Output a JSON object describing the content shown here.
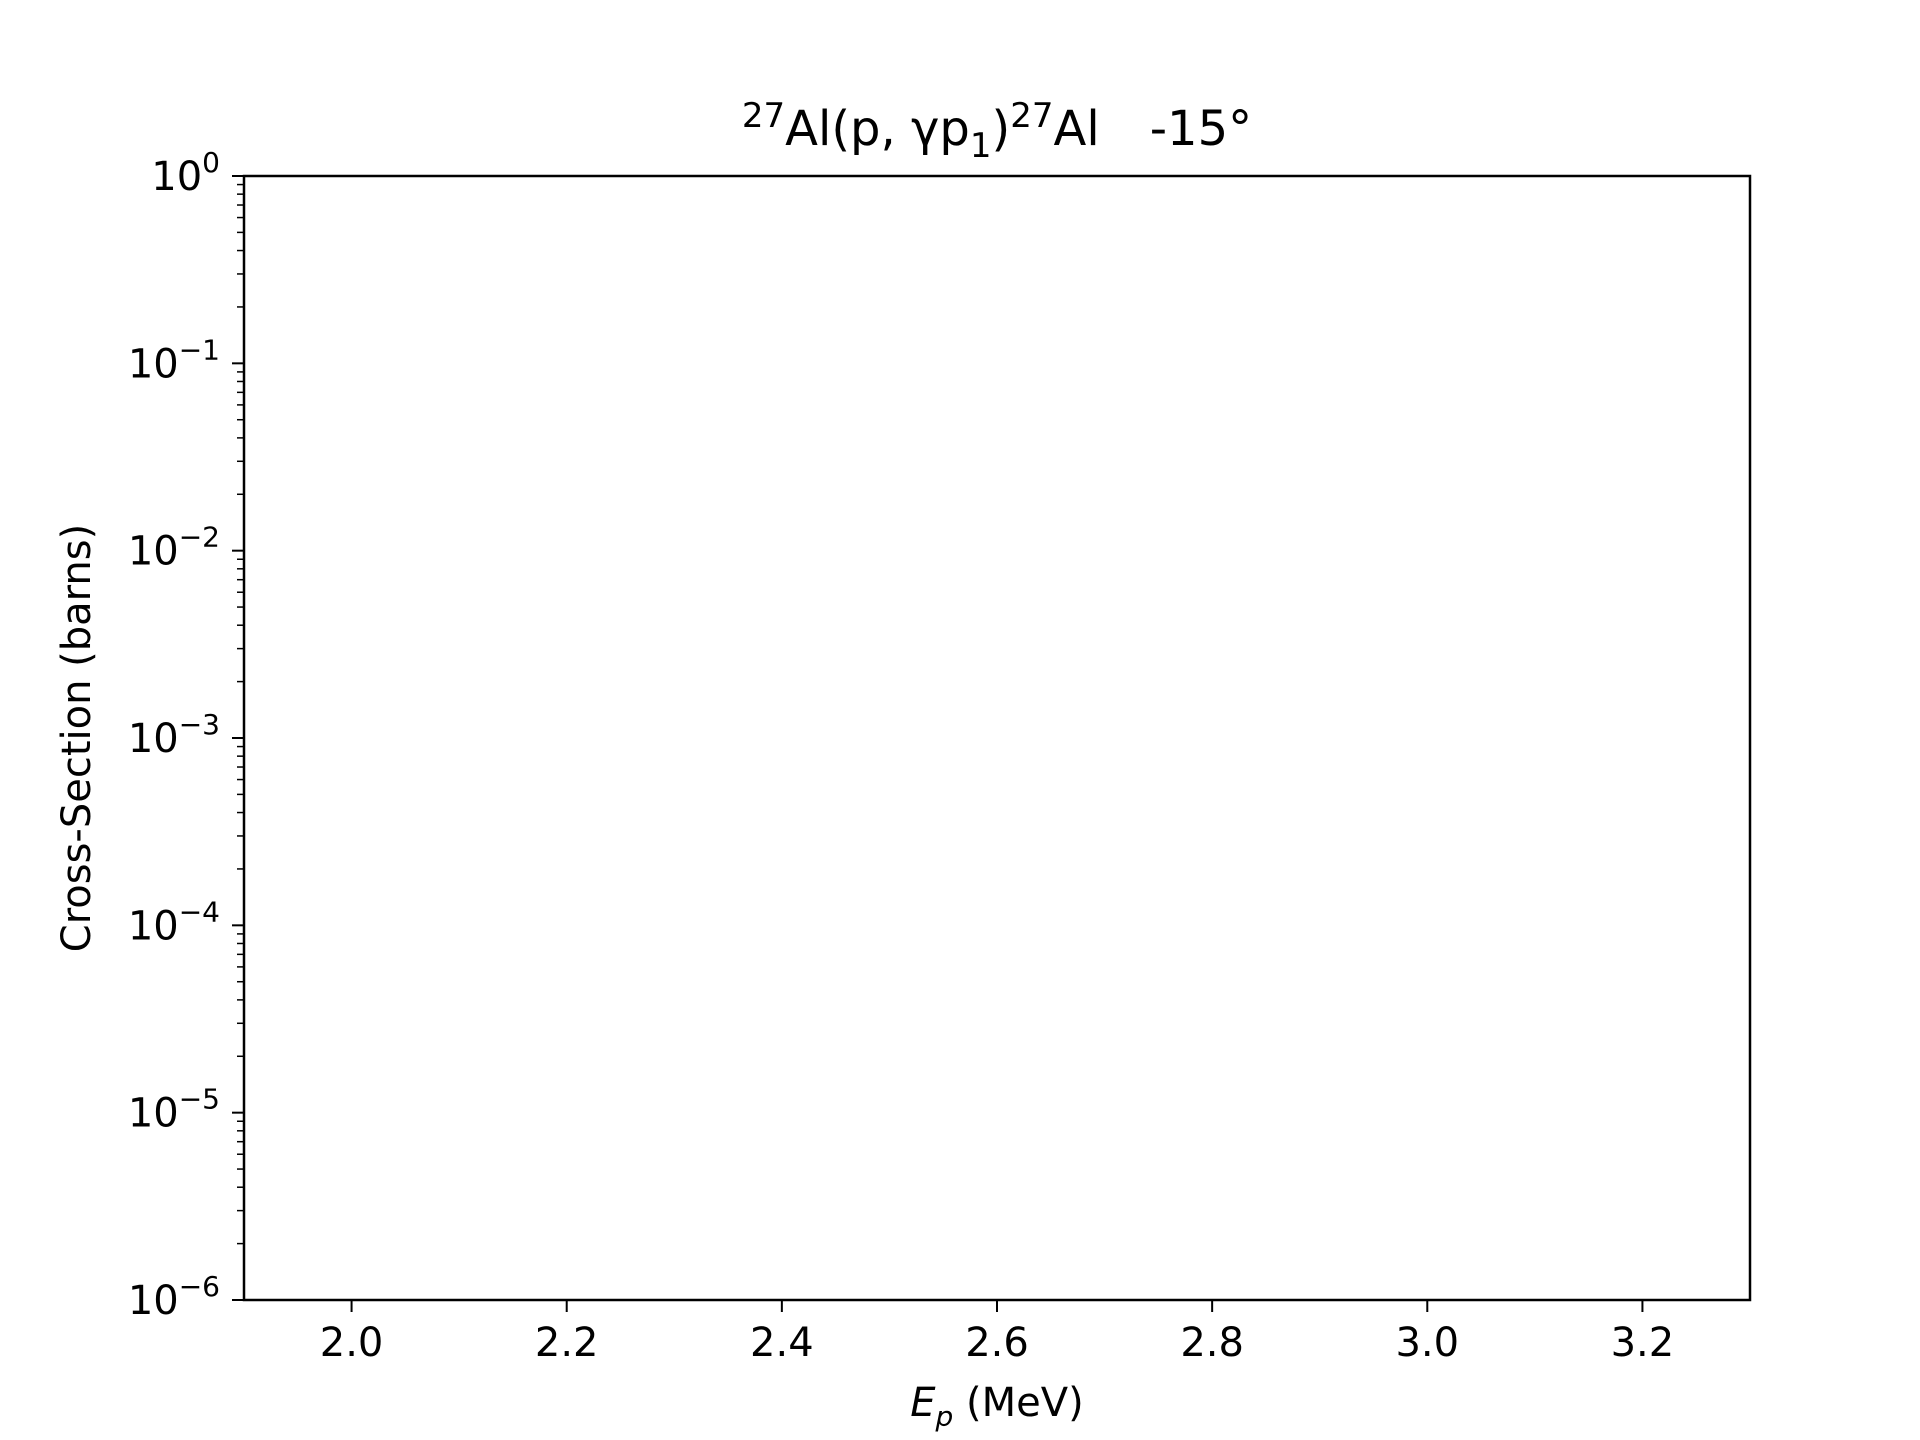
{
  "chart_data": {
    "type": "scatter",
    "title": {
      "mass_1": "27",
      "reaction": "Al(p, γp",
      "sub": "1",
      "close": ")",
      "mass_2": "27",
      "product": "Al",
      "angle": "-15°"
    },
    "xlabel": {
      "symbol": "E",
      "sub": "p",
      "unit": " (MeV)"
    },
    "ylabel": "Cross-Section (barns)",
    "xlim": [
      1.9,
      3.3
    ],
    "ylim": [
      1e-06,
      1
    ],
    "yscale": "log",
    "x_ticks": [
      "2.0",
      "2.2",
      "2.4",
      "2.6",
      "2.8",
      "3.0",
      "3.2"
    ],
    "y_ticks": [
      {
        "base": "10",
        "exp": "0"
      },
      {
        "base": "10",
        "exp": "−1"
      },
      {
        "base": "10",
        "exp": "−2"
      },
      {
        "base": "10",
        "exp": "−3"
      },
      {
        "base": "10",
        "exp": "−4"
      },
      {
        "base": "10",
        "exp": "−5"
      },
      {
        "base": "10",
        "exp": "−6"
      }
    ],
    "series": [],
    "grid": false,
    "legend": null
  }
}
